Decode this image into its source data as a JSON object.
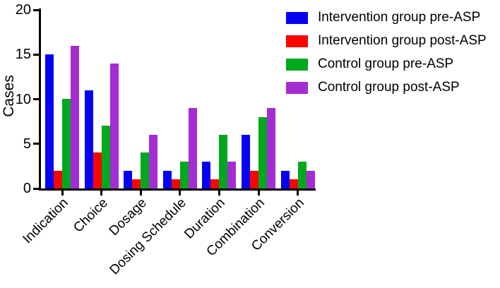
{
  "figure": {
    "background_color": "#ffffff",
    "text_color": "#000000",
    "axis_color": "#000000"
  },
  "chart_data": {
    "type": "bar",
    "title": "",
    "xlabel": "",
    "ylabel": "Cases",
    "ylim": [
      0,
      20
    ],
    "yticks": [
      0,
      5,
      10,
      15,
      20
    ],
    "grid": false,
    "legend_position": "top-right",
    "categories": [
      "Indication",
      "Choice",
      "Dosage",
      "Dosing Schedule",
      "Duration",
      "Combination",
      "Conversion"
    ],
    "series": [
      {
        "name": "Intervention group pre-ASP",
        "color": "#0502f2",
        "values": [
          15,
          11,
          2,
          2,
          3,
          6,
          2
        ]
      },
      {
        "name": "Intervention group post-ASP",
        "color": "#f90400",
        "values": [
          2,
          4,
          1,
          1,
          1,
          2,
          1
        ]
      },
      {
        "name": "Control group pre-ASP",
        "color": "#00a81e",
        "values": [
          10,
          7,
          4,
          3,
          6,
          8,
          3
        ]
      },
      {
        "name": "Control group post-ASP",
        "color": "#a42cd2",
        "values": [
          16,
          14,
          6,
          9,
          3,
          9,
          2
        ]
      }
    ]
  }
}
